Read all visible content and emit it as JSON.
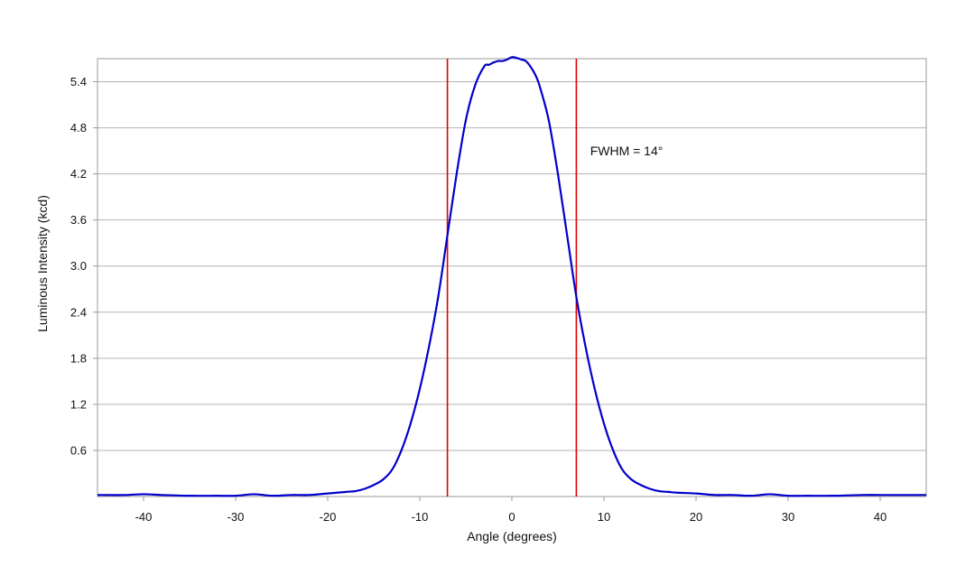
{
  "chart_data": {
    "type": "line",
    "title": "",
    "xlabel": "Angle (degrees)",
    "ylabel": "Luminous Intensity (kcd)",
    "xlim": [
      -45,
      45
    ],
    "ylim": [
      0,
      5.7
    ],
    "xticks": [
      -40,
      -30,
      -20,
      -10,
      0,
      10,
      20,
      30,
      40
    ],
    "xtick_labels": [
      "-40",
      "-30",
      "-20",
      "-10",
      "0",
      "10",
      "20",
      "30",
      "40"
    ],
    "yticks": [
      0.6,
      1.2,
      1.8,
      2.4,
      3.0,
      3.6,
      4.2,
      4.8,
      5.4
    ],
    "ytick_labels": [
      "0.6",
      "1.2",
      "1.8",
      "2.4",
      "3.0",
      "3.6",
      "4.2",
      "4.8",
      "5.4"
    ],
    "grid": true,
    "series": [
      {
        "color": "#0000cc",
        "x": [
          -45,
          -42,
          -40,
          -38,
          -35,
          -32,
          -30,
          -28,
          -26,
          -24,
          -22,
          -20,
          -18,
          -17,
          -16,
          -15,
          -14,
          -13,
          -12,
          -11,
          -10,
          -9,
          -8,
          -7,
          -6,
          -5,
          -4,
          -3,
          -2.5,
          -2,
          -1.5,
          -1,
          -0.5,
          0,
          0.5,
          1,
          1.5,
          2,
          2.5,
          3,
          4,
          5,
          6,
          7,
          8,
          9,
          10,
          11,
          12,
          13,
          14,
          15,
          16,
          17,
          18,
          20,
          22,
          24,
          26,
          28,
          30,
          32,
          35,
          38,
          40,
          42,
          45
        ],
        "y": [
          0.02,
          0.02,
          0.03,
          0.02,
          0.01,
          0.01,
          0.01,
          0.03,
          0.01,
          0.02,
          0.02,
          0.04,
          0.06,
          0.07,
          0.1,
          0.15,
          0.22,
          0.35,
          0.6,
          0.95,
          1.4,
          1.95,
          2.6,
          3.4,
          4.2,
          4.9,
          5.35,
          5.6,
          5.62,
          5.65,
          5.67,
          5.67,
          5.69,
          5.72,
          5.71,
          5.69,
          5.67,
          5.6,
          5.5,
          5.35,
          4.9,
          4.2,
          3.4,
          2.6,
          1.95,
          1.4,
          0.95,
          0.6,
          0.35,
          0.22,
          0.15,
          0.1,
          0.07,
          0.06,
          0.05,
          0.04,
          0.02,
          0.02,
          0.01,
          0.03,
          0.01,
          0.01,
          0.01,
          0.02,
          0.02,
          0.02,
          0.02
        ]
      }
    ],
    "vlines": [
      {
        "x": -7,
        "color": "#e00000"
      },
      {
        "x": 7,
        "color": "#e00000"
      }
    ],
    "annotations": [
      {
        "text": "FWHM = 14°",
        "x": 8.5,
        "y": 4.5
      }
    ]
  }
}
